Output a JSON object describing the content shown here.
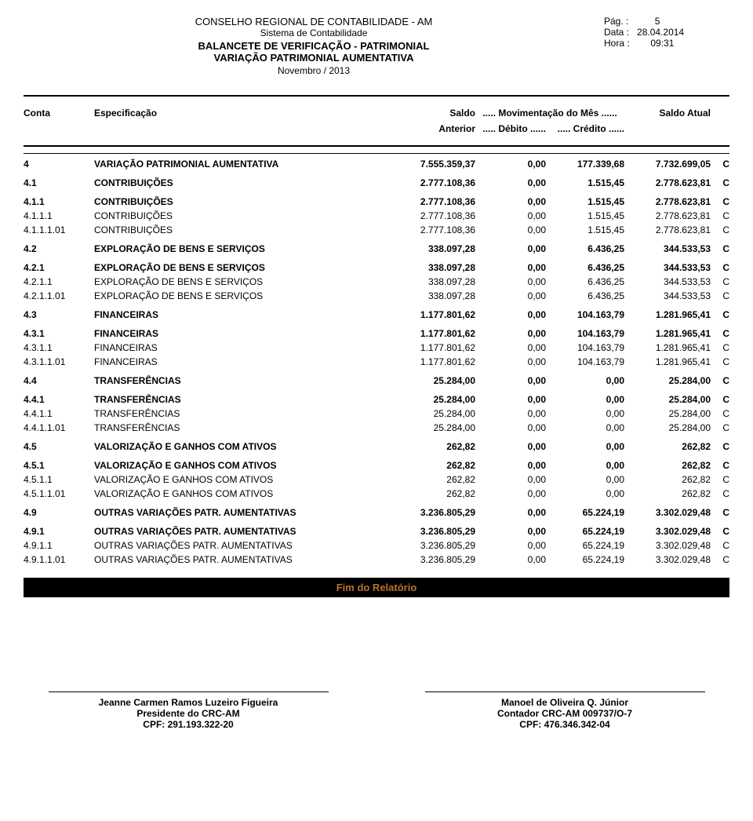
{
  "header": {
    "org": "CONSELHO REGIONAL DE CONTABILIDADE - AM",
    "system": "Sistema de Contabilidade",
    "balancete": "BALANCETE DE VERIFICAÇÃO - PATRIMONIAL",
    "variacao": "VARIAÇÃO PATRIMONIAL AUMENTATIVA",
    "period": "Novembro / 2013",
    "page_label": "Pág. :",
    "page_value": "5",
    "data_label": "Data :",
    "data_value": "28.04.2014",
    "hora_label": "Hora :",
    "hora_value": "09:31"
  },
  "columns": {
    "conta": "Conta",
    "espec": "Especificação",
    "saldo_top": "Saldo",
    "mov_top": "..... Movimentação do Mês ......",
    "atual": "Saldo Atual",
    "anterior": "Anterior",
    "debito": "..... Débito ......",
    "credito": "..... Crédito ......"
  },
  "rows": [
    {
      "conta": "4",
      "espec": "VARIAÇÃO PATRIMONIAL AUMENTATIVA",
      "ant": "7.555.359,37",
      "deb": "0,00",
      "cred": "177.339,68",
      "atual": "7.732.699,05",
      "dc": "C",
      "bold": true,
      "top": true
    },
    {
      "conta": "4.1",
      "espec": "CONTRIBUIÇÕES",
      "ant": "2.777.108,36",
      "deb": "0,00",
      "cred": "1.515,45",
      "atual": "2.778.623,81",
      "dc": "C",
      "bold": true,
      "gap": true
    },
    {
      "conta": "4.1.1",
      "espec": "CONTRIBUIÇÕES",
      "ant": "2.777.108,36",
      "deb": "0,00",
      "cred": "1.515,45",
      "atual": "2.778.623,81",
      "dc": "C",
      "bold": true,
      "gap": true
    },
    {
      "conta": "4.1.1.1",
      "espec": "CONTRIBUIÇÕES",
      "ant": "2.777.108,36",
      "deb": "0,00",
      "cred": "1.515,45",
      "atual": "2.778.623,81",
      "dc": "C"
    },
    {
      "conta": "4.1.1.1.01",
      "espec": "CONTRIBUIÇÕES",
      "ant": "2.777.108,36",
      "deb": "0,00",
      "cred": "1.515,45",
      "atual": "2.778.623,81",
      "dc": "C"
    },
    {
      "conta": "4.2",
      "espec": "EXPLORAÇÃO DE BENS E SERVIÇOS",
      "ant": "338.097,28",
      "deb": "0,00",
      "cred": "6.436,25",
      "atual": "344.533,53",
      "dc": "C",
      "bold": true,
      "gap": true
    },
    {
      "conta": "4.2.1",
      "espec": "EXPLORAÇÃO DE BENS E SERVIÇOS",
      "ant": "338.097,28",
      "deb": "0,00",
      "cred": "6.436,25",
      "atual": "344.533,53",
      "dc": "C",
      "bold": true,
      "gap": true
    },
    {
      "conta": "4.2.1.1",
      "espec": "EXPLORAÇÃO DE BENS E SERVIÇOS",
      "ant": "338.097,28",
      "deb": "0,00",
      "cred": "6.436,25",
      "atual": "344.533,53",
      "dc": "C"
    },
    {
      "conta": "4.2.1.1.01",
      "espec": "EXPLORAÇÃO DE BENS E SERVIÇOS",
      "ant": "338.097,28",
      "deb": "0,00",
      "cred": "6.436,25",
      "atual": "344.533,53",
      "dc": "C"
    },
    {
      "conta": "4.3",
      "espec": "FINANCEIRAS",
      "ant": "1.177.801,62",
      "deb": "0,00",
      "cred": "104.163,79",
      "atual": "1.281.965,41",
      "dc": "C",
      "bold": true,
      "gap": true
    },
    {
      "conta": "4.3.1",
      "espec": "FINANCEIRAS",
      "ant": "1.177.801,62",
      "deb": "0,00",
      "cred": "104.163,79",
      "atual": "1.281.965,41",
      "dc": "C",
      "bold": true,
      "gap": true
    },
    {
      "conta": "4.3.1.1",
      "espec": "FINANCEIRAS",
      "ant": "1.177.801,62",
      "deb": "0,00",
      "cred": "104.163,79",
      "atual": "1.281.965,41",
      "dc": "C"
    },
    {
      "conta": "4.3.1.1.01",
      "espec": "FINANCEIRAS",
      "ant": "1.177.801,62",
      "deb": "0,00",
      "cred": "104.163,79",
      "atual": "1.281.965,41",
      "dc": "C"
    },
    {
      "conta": "4.4",
      "espec": "TRANSFERÊNCIAS",
      "ant": "25.284,00",
      "deb": "0,00",
      "cred": "0,00",
      "atual": "25.284,00",
      "dc": "C",
      "bold": true,
      "gap": true
    },
    {
      "conta": "4.4.1",
      "espec": "TRANSFERÊNCIAS",
      "ant": "25.284,00",
      "deb": "0,00",
      "cred": "0,00",
      "atual": "25.284,00",
      "dc": "C",
      "bold": true,
      "gap": true
    },
    {
      "conta": "4.4.1.1",
      "espec": "TRANSFERÊNCIAS",
      "ant": "25.284,00",
      "deb": "0,00",
      "cred": "0,00",
      "atual": "25.284,00",
      "dc": "C"
    },
    {
      "conta": "4.4.1.1.01",
      "espec": "TRANSFERÊNCIAS",
      "ant": "25.284,00",
      "deb": "0,00",
      "cred": "0,00",
      "atual": "25.284,00",
      "dc": "C"
    },
    {
      "conta": "4.5",
      "espec": "VALORIZAÇÃO E GANHOS COM ATIVOS",
      "ant": "262,82",
      "deb": "0,00",
      "cred": "0,00",
      "atual": "262,82",
      "dc": "C",
      "bold": true,
      "gap": true
    },
    {
      "conta": "4.5.1",
      "espec": "VALORIZAÇÃO E GANHOS COM ATIVOS",
      "ant": "262,82",
      "deb": "0,00",
      "cred": "0,00",
      "atual": "262,82",
      "dc": "C",
      "bold": true,
      "gap": true
    },
    {
      "conta": "4.5.1.1",
      "espec": "VALORIZAÇÃO E GANHOS COM ATIVOS",
      "ant": "262,82",
      "deb": "0,00",
      "cred": "0,00",
      "atual": "262,82",
      "dc": "C"
    },
    {
      "conta": "4.5.1.1.01",
      "espec": "VALORIZAÇÃO E GANHOS COM ATIVOS",
      "ant": "262,82",
      "deb": "0,00",
      "cred": "0,00",
      "atual": "262,82",
      "dc": "C"
    },
    {
      "conta": "4.9",
      "espec": "OUTRAS VARIAÇÕES PATR. AUMENTATIVAS",
      "ant": "3.236.805,29",
      "deb": "0,00",
      "cred": "65.224,19",
      "atual": "3.302.029,48",
      "dc": "C",
      "bold": true,
      "gap": true
    },
    {
      "conta": "4.9.1",
      "espec": "OUTRAS VARIAÇÕES PATR. AUMENTATIVAS",
      "ant": "3.236.805,29",
      "deb": "0,00",
      "cred": "65.224,19",
      "atual": "3.302.029,48",
      "dc": "C",
      "bold": true,
      "gap": true
    },
    {
      "conta": "4.9.1.1",
      "espec": "OUTRAS VARIAÇÕES PATR. AUMENTATIVAS",
      "ant": "3.236.805,29",
      "deb": "0,00",
      "cred": "65.224,19",
      "atual": "3.302.029,48",
      "dc": "C"
    },
    {
      "conta": "4.9.1.1.01",
      "espec": "OUTRAS VARIAÇÕES PATR. AUMENTATIVAS",
      "ant": "3.236.805,29",
      "deb": "0,00",
      "cred": "65.224,19",
      "atual": "3.302.029,48",
      "dc": "C"
    }
  ],
  "end_bar": "Fim do Relatório",
  "sig_left": {
    "name": "Jeanne Carmen Ramos Luzeiro Figueira",
    "title": "Presidente do CRC-AM",
    "cpf": "CPF: 291.193.322-20"
  },
  "sig_right": {
    "name": "Manoel de Oliveira Q. Júnior",
    "title": "Contador CRC-AM 009737/O-7",
    "cpf": "CPF: 476.346.342-04"
  }
}
